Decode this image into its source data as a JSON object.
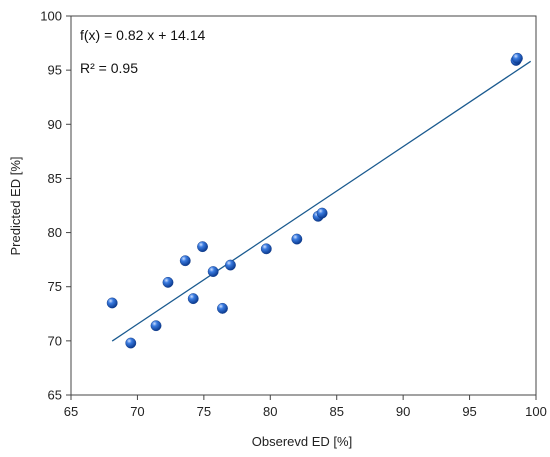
{
  "chart_data": {
    "type": "scatter",
    "xlabel": "Obserevd ED [%]",
    "ylabel": "Predicted ED [%]",
    "xlim": [
      65,
      100
    ],
    "ylim": [
      65,
      100
    ],
    "xticks": [
      65,
      70,
      75,
      80,
      85,
      90,
      95,
      100
    ],
    "yticks": [
      65,
      70,
      75,
      80,
      85,
      90,
      95,
      100
    ],
    "grid": false,
    "points": [
      {
        "x": 68.1,
        "y": 73.5
      },
      {
        "x": 69.5,
        "y": 69.8
      },
      {
        "x": 71.4,
        "y": 71.4
      },
      {
        "x": 72.3,
        "y": 75.4
      },
      {
        "x": 73.6,
        "y": 77.4
      },
      {
        "x": 74.2,
        "y": 73.9
      },
      {
        "x": 74.9,
        "y": 78.7
      },
      {
        "x": 75.7,
        "y": 76.4
      },
      {
        "x": 76.4,
        "y": 73.0
      },
      {
        "x": 77.0,
        "y": 77.0
      },
      {
        "x": 79.7,
        "y": 78.5
      },
      {
        "x": 82.0,
        "y": 79.4
      },
      {
        "x": 83.6,
        "y": 81.5
      },
      {
        "x": 83.9,
        "y": 81.8
      },
      {
        "x": 98.5,
        "y": 95.9
      },
      {
        "x": 98.6,
        "y": 96.1
      }
    ],
    "trendline": {
      "slope": 0.82,
      "intercept": 14.14,
      "x_range": [
        68.1,
        99.6
      ]
    },
    "annotations": [
      "f(x) = 0.82 x + 14.14",
      "R² = 0.95"
    ],
    "colors": {
      "marker": "#1f5fcf",
      "marker_highlight": "#a9c8ff",
      "trendline": "#1a5a8f",
      "axis": "#444444"
    }
  }
}
